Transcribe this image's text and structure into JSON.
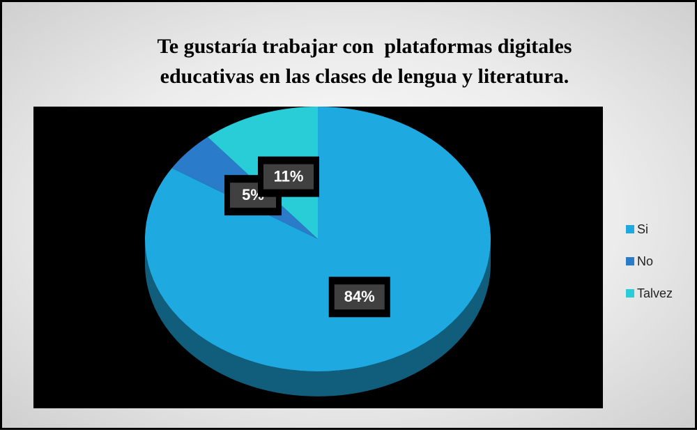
{
  "chart_data": {
    "type": "pie",
    "title": "Te gustaría trabajar con  plataformas digitales educativas en las clases de lengua y literatura.",
    "categories": [
      "Si",
      "No",
      "Talvez"
    ],
    "values": [
      84,
      5,
      11
    ],
    "value_labels": [
      "84%",
      "5%",
      "11%"
    ],
    "colors": [
      "#1fa9e1",
      "#2a7bc9",
      "#29cdd8"
    ],
    "legend": "right"
  }
}
